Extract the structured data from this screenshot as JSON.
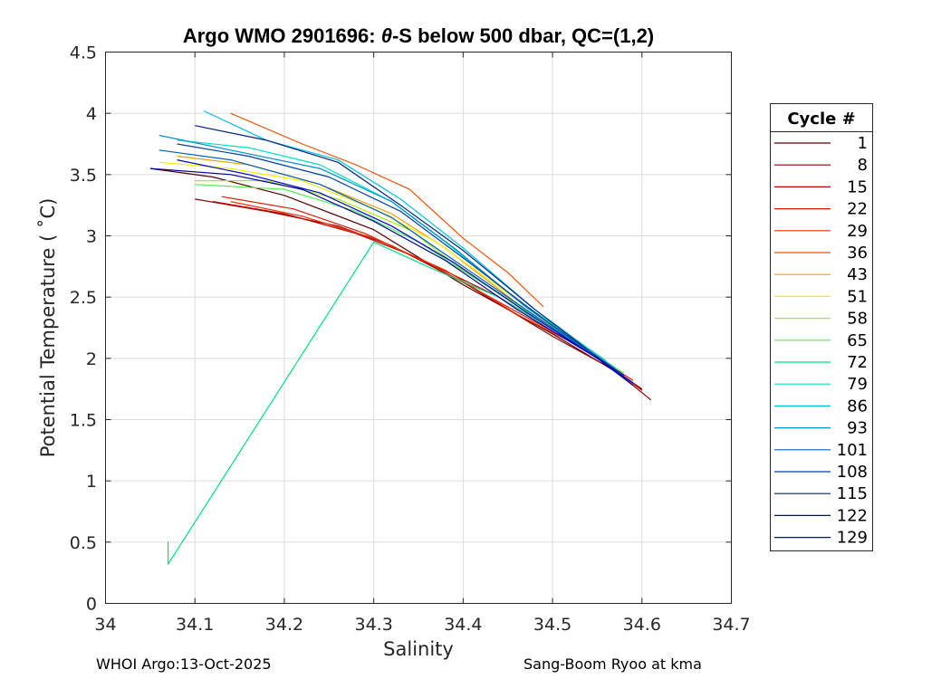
{
  "chart_data": {
    "type": "line",
    "title": {
      "prefix": "Argo WMO 2901696: ",
      "theta": "θ",
      "suffix": "-S below 500 dbar,  QC=(1,2)"
    },
    "xlabel": "Salinity",
    "ylabel": "Potential Temperature ( ˚C)",
    "xlim": [
      34.0,
      34.7
    ],
    "ylim": [
      0,
      4.5
    ],
    "xticks": [
      34,
      34.1,
      34.2,
      34.3,
      34.4,
      34.5,
      34.6,
      34.7
    ],
    "xtick_labels": [
      "34",
      "34.1",
      "34.2",
      "34.3",
      "34.4",
      "34.5",
      "34.6",
      "34.7"
    ],
    "yticks": [
      0,
      0.5,
      1,
      1.5,
      2,
      2.5,
      3,
      3.5,
      4,
      4.5
    ],
    "ytick_labels": [
      "0",
      "0.5",
      "1",
      "1.5",
      "2",
      "2.5",
      "3",
      "3.5",
      "4",
      "4.5"
    ],
    "grid": true,
    "legend_title": "Cycle #",
    "legend_position": "outside-right",
    "series": [
      {
        "name": "1",
        "color": "#5a0000",
        "points": [
          [
            34.05,
            3.55
          ],
          [
            34.12,
            3.48
          ],
          [
            34.2,
            3.33
          ],
          [
            34.3,
            3.05
          ],
          [
            34.4,
            2.6
          ],
          [
            34.5,
            2.2
          ],
          [
            34.58,
            1.85
          ],
          [
            34.6,
            1.75
          ]
        ]
      },
      {
        "name": "8",
        "color": "#8c0000",
        "points": [
          [
            34.1,
            3.3
          ],
          [
            34.18,
            3.2
          ],
          [
            34.26,
            3.08
          ],
          [
            34.32,
            2.92
          ],
          [
            34.4,
            2.62
          ],
          [
            34.5,
            2.18
          ],
          [
            34.57,
            1.9
          ],
          [
            34.61,
            1.66
          ]
        ]
      },
      {
        "name": "15",
        "color": "#c00000",
        "points": [
          [
            34.12,
            3.28
          ],
          [
            34.2,
            3.18
          ],
          [
            34.28,
            3.02
          ],
          [
            34.35,
            2.82
          ],
          [
            34.44,
            2.5
          ],
          [
            34.52,
            2.15
          ],
          [
            34.58,
            1.85
          ],
          [
            34.6,
            1.74
          ]
        ]
      },
      {
        "name": "22",
        "color": "#e01800",
        "points": [
          [
            34.13,
            3.32
          ],
          [
            34.21,
            3.22
          ],
          [
            34.29,
            3.02
          ],
          [
            34.36,
            2.78
          ],
          [
            34.45,
            2.42
          ],
          [
            34.53,
            2.1
          ],
          [
            34.59,
            1.82
          ]
        ]
      },
      {
        "name": "29",
        "color": "#f03000",
        "points": [
          [
            34.14,
            3.28
          ],
          [
            34.22,
            3.16
          ],
          [
            34.3,
            2.98
          ],
          [
            34.38,
            2.72
          ],
          [
            34.46,
            2.36
          ],
          [
            34.54,
            2.06
          ],
          [
            34.59,
            1.8
          ]
        ]
      },
      {
        "name": "36",
        "color": "#f05000",
        "points": [
          [
            34.14,
            4.0
          ],
          [
            34.22,
            3.75
          ],
          [
            34.28,
            3.58
          ],
          [
            34.34,
            3.38
          ],
          [
            34.4,
            2.98
          ],
          [
            34.45,
            2.7
          ],
          [
            34.49,
            2.42
          ]
        ]
      },
      {
        "name": "43",
        "color": "#f0a000",
        "points": [
          [
            34.08,
            3.65
          ],
          [
            34.16,
            3.58
          ],
          [
            34.24,
            3.42
          ],
          [
            34.32,
            3.18
          ],
          [
            34.38,
            2.9
          ],
          [
            34.46,
            2.45
          ],
          [
            34.55,
            2.0
          ]
        ]
      },
      {
        "name": "51",
        "color": "#f0f000",
        "points": [
          [
            34.06,
            3.6
          ],
          [
            34.14,
            3.55
          ],
          [
            34.22,
            3.45
          ],
          [
            34.3,
            3.22
          ],
          [
            34.37,
            2.95
          ],
          [
            34.46,
            2.48
          ],
          [
            34.56,
            1.98
          ]
        ]
      },
      {
        "name": "58",
        "color": "#a0f000",
        "points": [
          [
            34.1,
            3.45
          ],
          [
            34.18,
            3.45
          ],
          [
            34.26,
            3.3
          ],
          [
            34.34,
            3.05
          ],
          [
            34.4,
            2.72
          ],
          [
            34.48,
            2.35
          ],
          [
            34.57,
            1.92
          ]
        ]
      },
      {
        "name": "65",
        "color": "#50f050",
        "points": [
          [
            34.1,
            3.42
          ],
          [
            34.2,
            3.38
          ],
          [
            34.28,
            3.2
          ],
          [
            34.35,
            2.95
          ],
          [
            34.42,
            2.62
          ],
          [
            34.5,
            2.25
          ],
          [
            34.58,
            1.88
          ]
        ]
      },
      {
        "name": "72",
        "color": "#00e080",
        "points": [
          [
            34.07,
            0.32
          ],
          [
            34.07,
            0.5
          ],
          [
            34.07,
            0.32
          ],
          [
            34.3,
            2.95
          ],
          [
            34.36,
            2.75
          ],
          [
            34.44,
            2.5
          ],
          [
            34.52,
            2.15
          ],
          [
            34.58,
            1.85
          ]
        ]
      },
      {
        "name": "79",
        "color": "#00e0c0",
        "points": [
          [
            34.08,
            3.78
          ],
          [
            34.16,
            3.72
          ],
          [
            34.24,
            3.58
          ],
          [
            34.32,
            3.28
          ],
          [
            34.38,
            2.95
          ],
          [
            34.46,
            2.48
          ],
          [
            34.56,
            1.98
          ]
        ]
      },
      {
        "name": "86",
        "color": "#00c0e0",
        "points": [
          [
            34.11,
            4.02
          ],
          [
            34.18,
            3.78
          ],
          [
            34.26,
            3.62
          ],
          [
            34.33,
            3.3
          ],
          [
            34.4,
            2.9
          ],
          [
            34.48,
            2.4
          ],
          [
            34.57,
            1.92
          ]
        ]
      },
      {
        "name": "93",
        "color": "#0090d0",
        "points": [
          [
            34.06,
            3.82
          ],
          [
            34.14,
            3.7
          ],
          [
            34.24,
            3.55
          ],
          [
            34.32,
            3.28
          ],
          [
            34.39,
            2.9
          ],
          [
            34.47,
            2.42
          ],
          [
            34.57,
            1.9
          ]
        ]
      },
      {
        "name": "101",
        "color": "#0060c0",
        "points": [
          [
            34.06,
            3.7
          ],
          [
            34.14,
            3.62
          ],
          [
            34.24,
            3.42
          ],
          [
            34.32,
            3.15
          ],
          [
            34.39,
            2.8
          ],
          [
            34.48,
            2.35
          ],
          [
            34.58,
            1.85
          ]
        ]
      },
      {
        "name": "108",
        "color": "#0040a0",
        "points": [
          [
            34.08,
            3.75
          ],
          [
            34.16,
            3.65
          ],
          [
            34.25,
            3.48
          ],
          [
            34.33,
            3.2
          ],
          [
            34.4,
            2.82
          ],
          [
            34.49,
            2.32
          ],
          [
            34.58,
            1.86
          ]
        ]
      },
      {
        "name": "115",
        "color": "#002080",
        "points": [
          [
            34.1,
            3.9
          ],
          [
            34.18,
            3.78
          ],
          [
            34.26,
            3.6
          ],
          [
            34.33,
            3.25
          ],
          [
            34.4,
            2.88
          ],
          [
            34.48,
            2.4
          ],
          [
            34.57,
            1.9
          ]
        ]
      },
      {
        "name": "122",
        "color": "#0000a0",
        "points": [
          [
            34.05,
            3.55
          ],
          [
            34.14,
            3.5
          ],
          [
            34.22,
            3.38
          ],
          [
            34.3,
            3.12
          ],
          [
            34.38,
            2.8
          ],
          [
            34.46,
            2.4
          ],
          [
            34.55,
            2.0
          ],
          [
            34.59,
            1.78
          ]
        ]
      },
      {
        "name": "129",
        "color": "#0000d8",
        "points": [
          [
            34.08,
            3.62
          ],
          [
            34.16,
            3.5
          ],
          [
            34.24,
            3.35
          ],
          [
            34.32,
            3.08
          ],
          [
            34.39,
            2.78
          ],
          [
            34.47,
            2.38
          ],
          [
            34.55,
            2.0
          ],
          [
            34.59,
            1.8
          ]
        ]
      }
    ]
  },
  "footer": {
    "left": "WHOI Argo:13-Oct-2025",
    "right": "Sang-Boom Ryoo at kma"
  }
}
